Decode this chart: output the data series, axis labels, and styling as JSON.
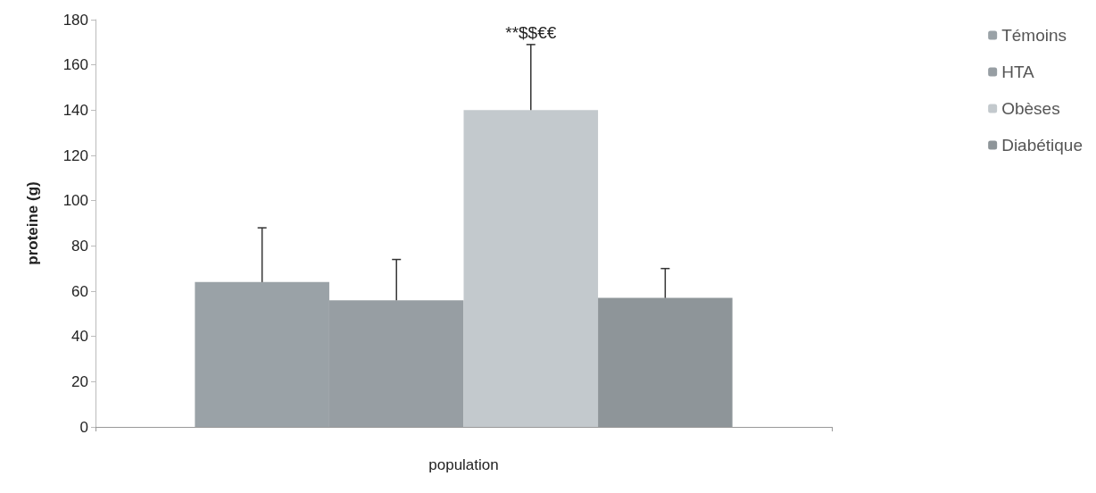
{
  "chart_data": {
    "type": "bar",
    "xlabel": "population",
    "ylabel": "proteine (g)",
    "categories": [
      null
    ],
    "series": [
      {
        "name": "Témoins",
        "color": "#9aa2a7",
        "values": [
          64
        ],
        "errors": [
          24
        ]
      },
      {
        "name": "HTA",
        "color": "#979ea3",
        "values": [
          56
        ],
        "errors": [
          18
        ]
      },
      {
        "name": "Obèses",
        "color": "#c3c9cd",
        "values": [
          140
        ],
        "errors": [
          29
        ]
      },
      {
        "name": "Diabétique",
        "color": "#8e9599",
        "values": [
          57
        ],
        "errors": [
          13
        ]
      }
    ],
    "ylim": [
      0,
      180
    ],
    "yticks": [
      0,
      20,
      40,
      60,
      80,
      100,
      120,
      140,
      160,
      180
    ],
    "grid": false,
    "legend": "top right",
    "annotations": [
      {
        "text": "**$$€€",
        "y": 169
      }
    ]
  }
}
